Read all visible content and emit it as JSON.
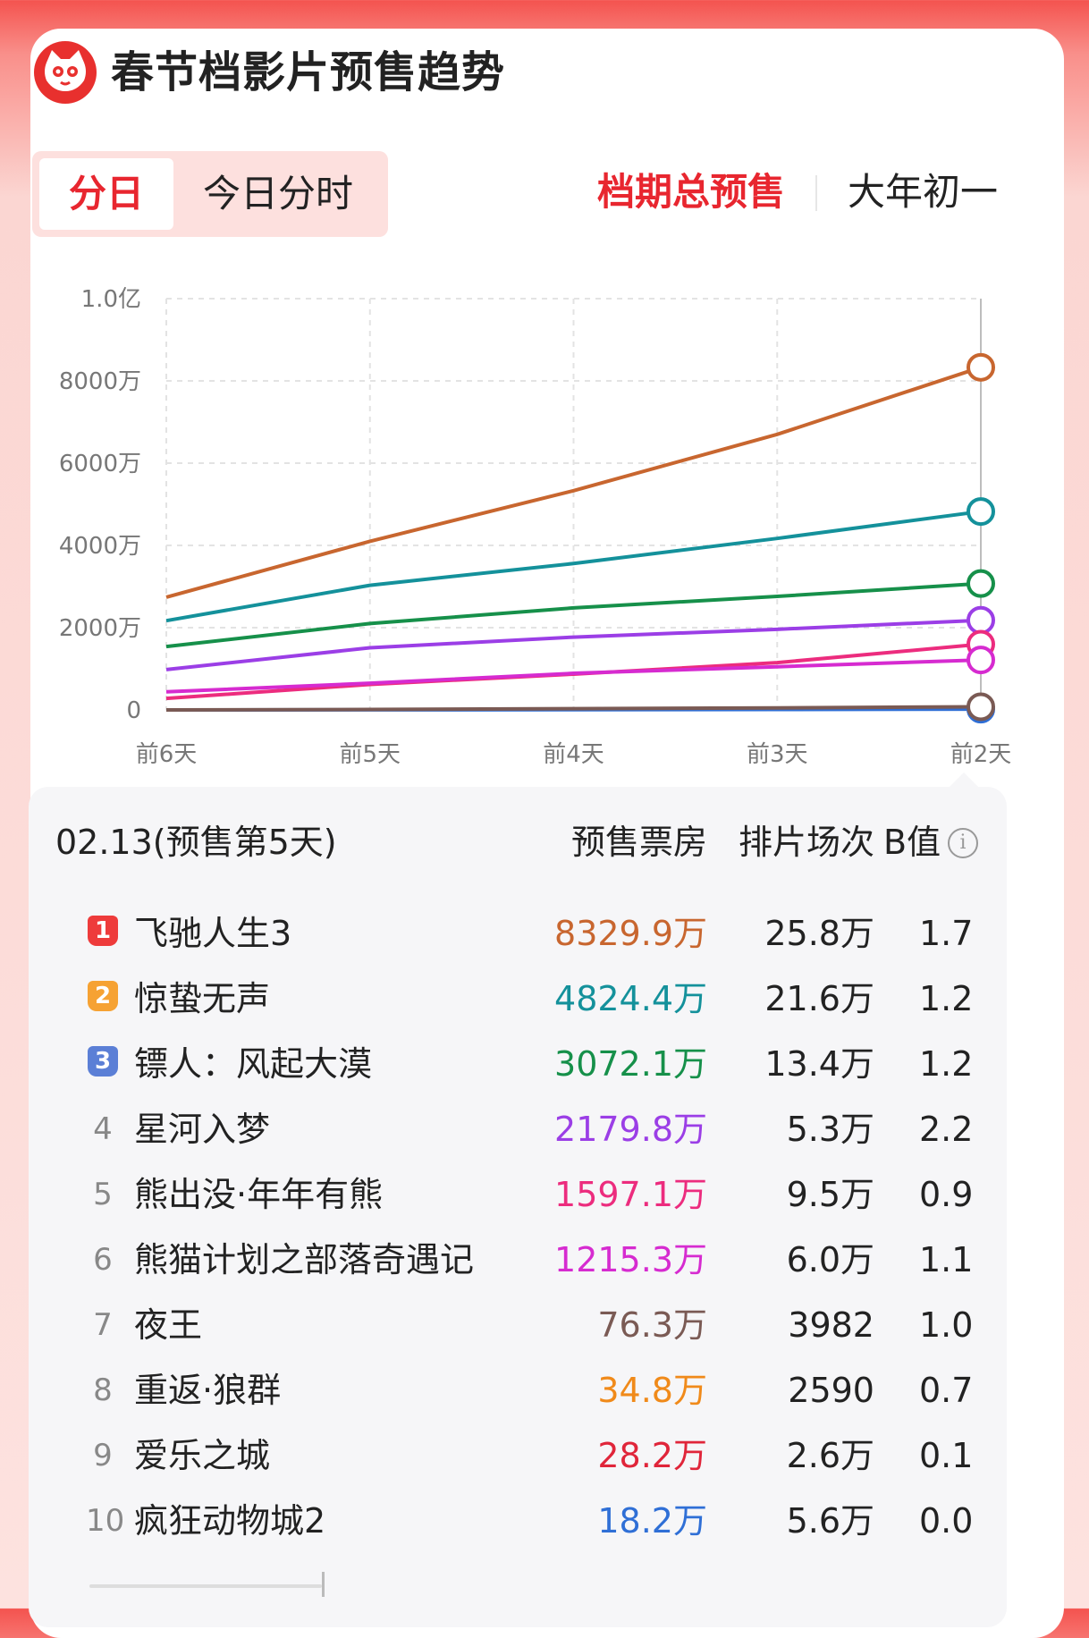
{
  "header": {
    "title": "春节档影片预售趋势",
    "logo_icon": "cat-eye-logo-icon"
  },
  "tabs_left": [
    {
      "label": "分日",
      "active": true
    },
    {
      "label": "今日分时",
      "active": false
    }
  ],
  "tabs_right": [
    {
      "label": "档期总预售",
      "active": true
    },
    {
      "label": "大年初一",
      "active": false
    }
  ],
  "chart_data": {
    "type": "line",
    "x": [
      "前6天",
      "前5天",
      "前4天",
      "前3天",
      "前2天"
    ],
    "yticks": [
      "0",
      "2000万",
      "4000万",
      "6000万",
      "8000万",
      "1.0亿"
    ],
    "ylim": [
      0,
      10000
    ],
    "unit": "万",
    "grid": true,
    "series": [
      {
        "color": "#c8662f",
        "values": [
          2740,
          4100,
          5330,
          6700,
          8329.9
        ]
      },
      {
        "color": "#14919b",
        "values": [
          2170,
          3030,
          3560,
          4170,
          4824.4
        ]
      },
      {
        "color": "#16904a",
        "values": [
          1540,
          2100,
          2480,
          2760,
          3072.1
        ]
      },
      {
        "color": "#9b3ee6",
        "values": [
          980,
          1510,
          1770,
          1960,
          2179.8
        ]
      },
      {
        "color": "#ec2c7e",
        "values": [
          280,
          620,
          870,
          1150,
          1597.1
        ]
      },
      {
        "color": "#d62bd0",
        "values": [
          440,
          650,
          890,
          1050,
          1215.3
        ]
      },
      {
        "color": "#2f6fd6",
        "values": [
          0,
          2,
          5,
          10,
          18.2
        ]
      },
      {
        "color": "#7a5a54",
        "values": [
          0,
          10,
          30,
          50,
          76.3
        ]
      }
    ]
  },
  "table": {
    "date_label": "02.13(预售第5天)",
    "headers": {
      "box": "预售票房",
      "sessions": "排片场次",
      "b": "B值"
    },
    "rows": [
      {
        "rank": "1",
        "name": "飞驰人生3",
        "box": "8329.9万",
        "sessions": "25.8万",
        "b": "1.7",
        "color": "#c8662f"
      },
      {
        "rank": "2",
        "name": "惊蛰无声",
        "box": "4824.4万",
        "sessions": "21.6万",
        "b": "1.2",
        "color": "#14919b"
      },
      {
        "rank": "3",
        "name": "镖人：风起大漠",
        "box": "3072.1万",
        "sessions": "13.4万",
        "b": "1.2",
        "color": "#16904a"
      },
      {
        "rank": "4",
        "name": "星河入梦",
        "box": "2179.8万",
        "sessions": "5.3万",
        "b": "2.2",
        "color": "#9b3ee6"
      },
      {
        "rank": "5",
        "name": "熊出没·年年有熊",
        "box": "1597.1万",
        "sessions": "9.5万",
        "b": "0.9",
        "color": "#ec2c7e"
      },
      {
        "rank": "6",
        "name": "熊猫计划之部落奇遇记",
        "box": "1215.3万",
        "sessions": "6.0万",
        "b": "1.1",
        "color": "#d62bd0"
      },
      {
        "rank": "7",
        "name": "夜王",
        "box": "76.3万",
        "sessions": "3982",
        "b": "1.0",
        "color": "#7a5a54"
      },
      {
        "rank": "8",
        "name": "重返·狼群",
        "box": "34.8万",
        "sessions": "2590",
        "b": "0.7",
        "color": "#f08a1a"
      },
      {
        "rank": "9",
        "name": "爱乐之城",
        "box": "28.2万",
        "sessions": "2.6万",
        "b": "0.1",
        "color": "#e0253a"
      },
      {
        "rank": "10",
        "name": "疯狂动物城2",
        "box": "18.2万",
        "sessions": "5.6万",
        "b": "0.0",
        "color": "#2f6fd6"
      }
    ]
  }
}
